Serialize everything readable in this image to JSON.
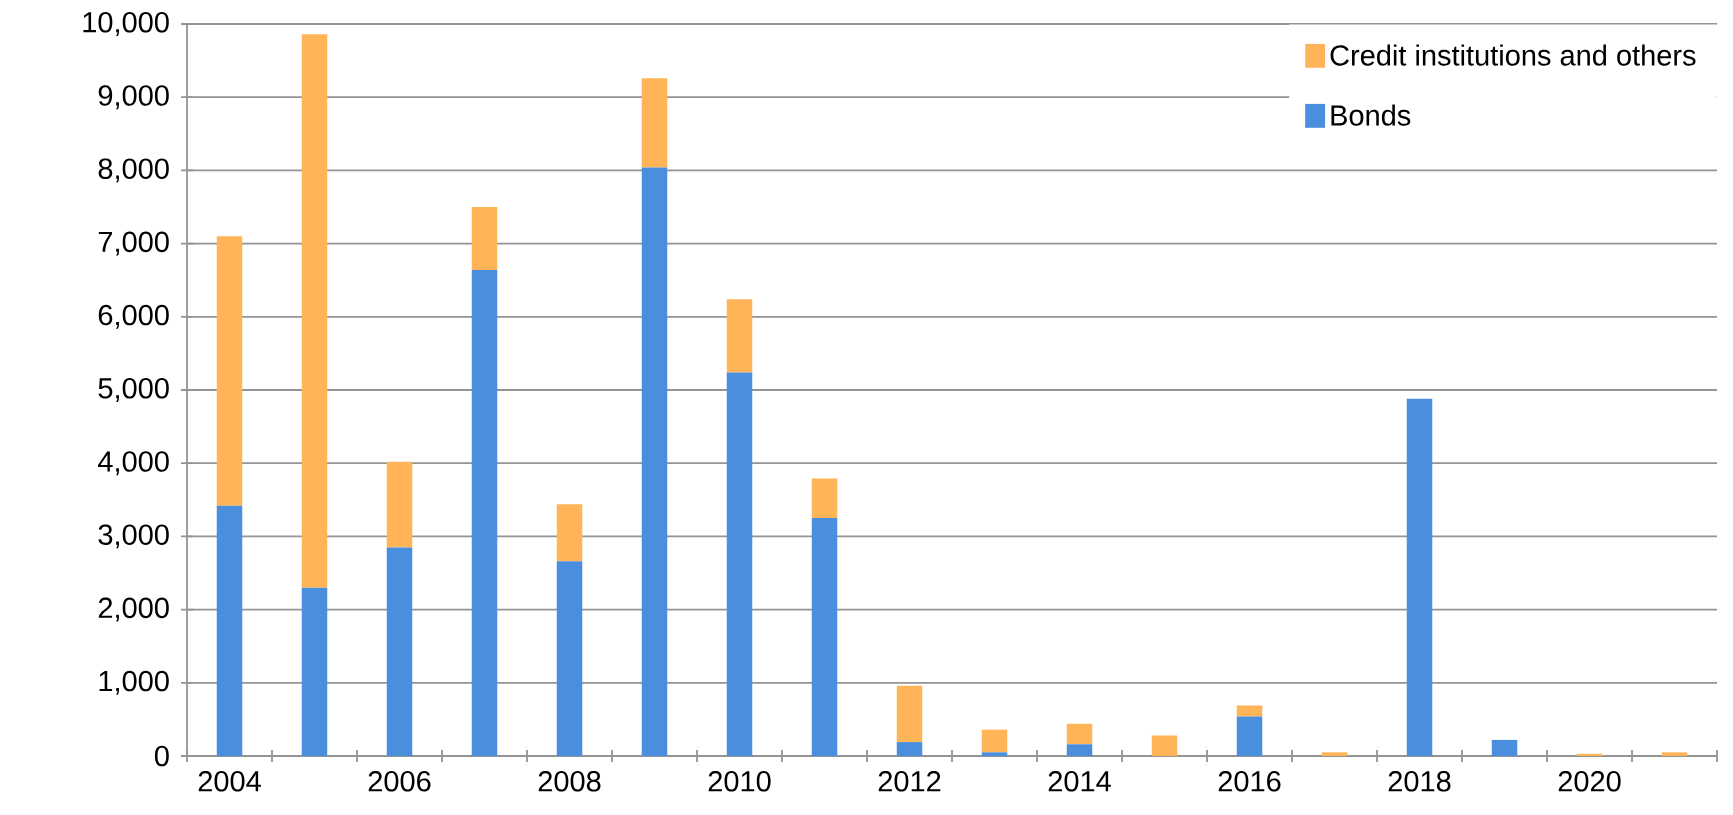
{
  "chart_data": {
    "type": "bar",
    "stacked": true,
    "categories": [
      "2004",
      null,
      "2006",
      null,
      "2008",
      null,
      "2010",
      null,
      "2012",
      null,
      "2014",
      null,
      "2016",
      null,
      "2018",
      null,
      "2020",
      null
    ],
    "series": [
      {
        "name": "Bonds",
        "color": "#4a8ede",
        "values": [
          3420,
          2300,
          2850,
          6640,
          2660,
          8040,
          5240,
          3250,
          190,
          50,
          160,
          0,
          540,
          0,
          4880,
          220,
          0,
          0
        ]
      },
      {
        "name": "Credit institutions and others",
        "color": "#ffb457",
        "values": [
          3680,
          7560,
          1170,
          860,
          780,
          1220,
          1000,
          540,
          770,
          310,
          280,
          280,
          150,
          50,
          0,
          0,
          30,
          50
        ]
      }
    ],
    "ylim": [
      0,
      10000
    ],
    "yticks": [
      0,
      {
        "value": 1000,
        "label": "1,000"
      },
      {
        "value": 2000,
        "label": "2,000"
      },
      {
        "value": 3000,
        "label": "3,000"
      },
      {
        "value": 4000,
        "label": "4,000"
      },
      {
        "value": 5000,
        "label": "5,000"
      },
      {
        "value": 6000,
        "label": "6,000"
      },
      {
        "value": 7000,
        "label": "7,000"
      },
      {
        "value": 8000,
        "label": "8,000"
      },
      {
        "value": 9000,
        "label": "9,000"
      },
      {
        "value": 10000,
        "label": "10,000"
      }
    ],
    "grid": "y",
    "legend": "top right"
  }
}
